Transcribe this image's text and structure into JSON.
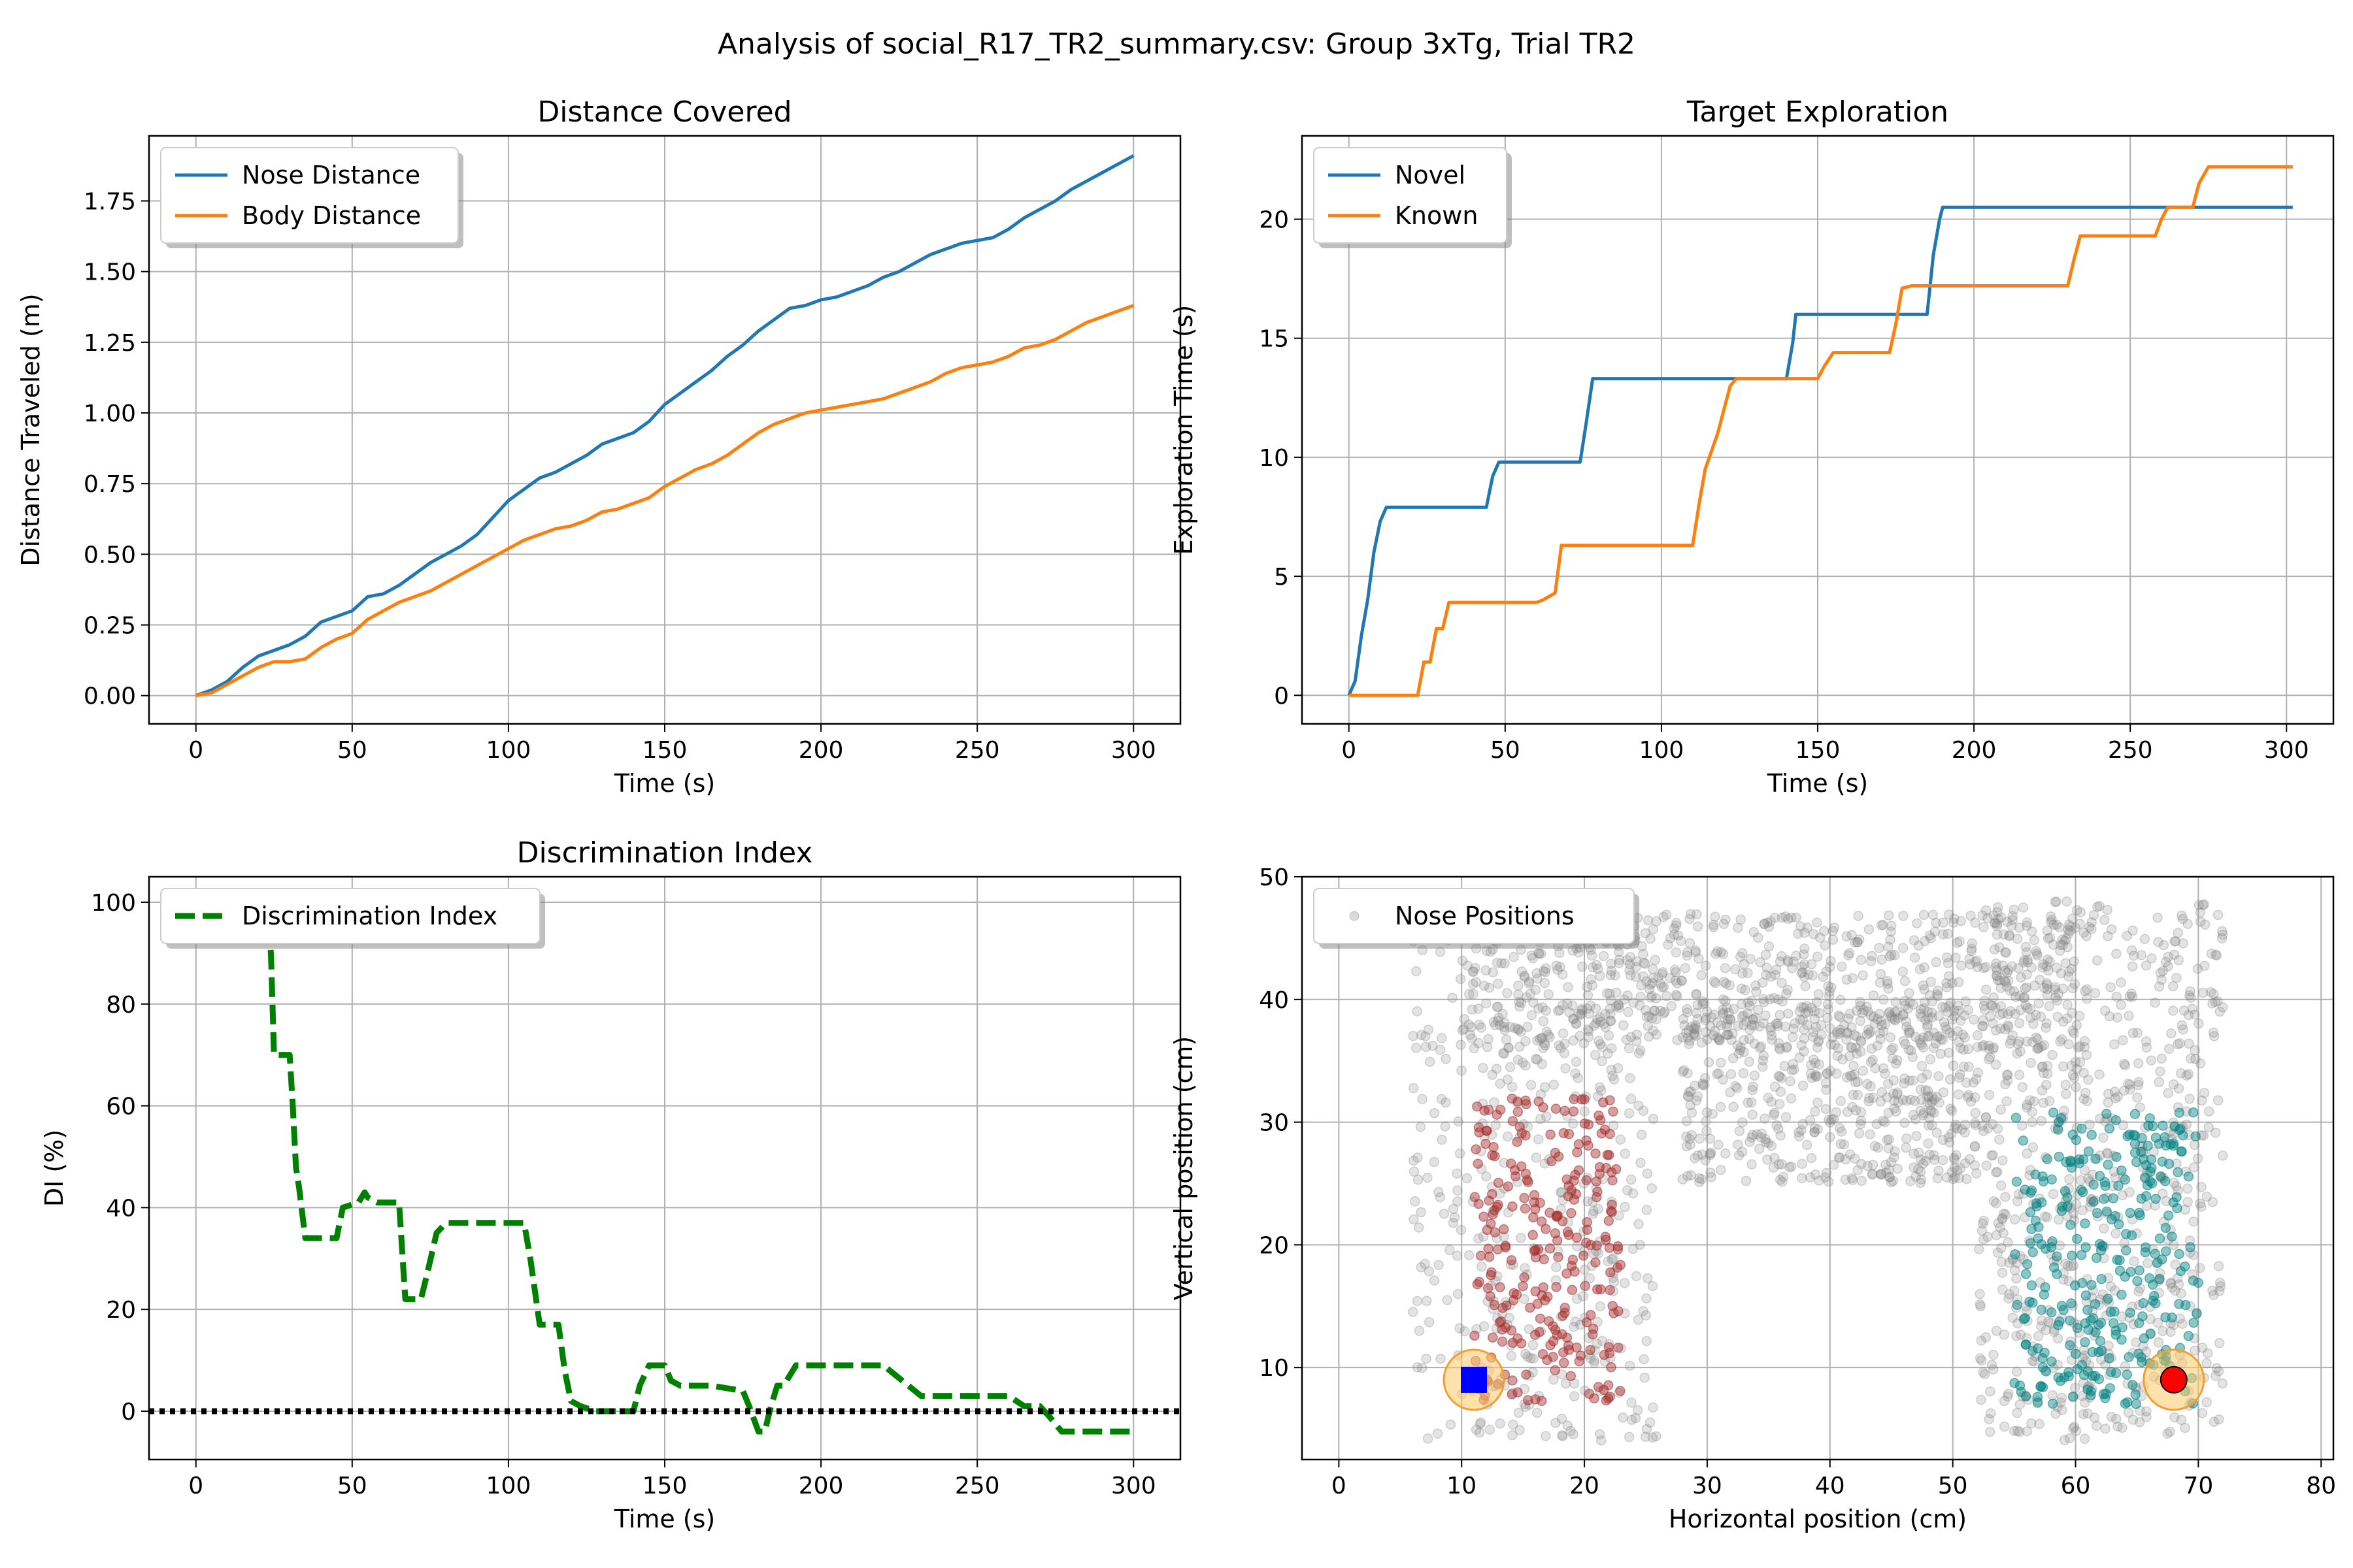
{
  "figure": {
    "suptitle": "Analysis of social_R17_TR2_summary.csv: Group 3xTg, Trial TR2"
  },
  "chart_data": [
    {
      "id": "distance",
      "type": "line",
      "title": "Distance Covered",
      "xlabel": "Time (s)",
      "ylabel": "Distance Traveled (m)",
      "xlim": [
        -15,
        315
      ],
      "ylim": [
        -0.1,
        1.98
      ],
      "xticks": [
        0,
        50,
        100,
        150,
        200,
        250,
        300
      ],
      "yticks": [
        0.0,
        0.25,
        0.5,
        0.75,
        1.0,
        1.25,
        1.5,
        1.75
      ],
      "ytick_labels": [
        "0.00",
        "0.25",
        "0.50",
        "0.75",
        "1.00",
        "1.25",
        "1.50",
        "1.75"
      ],
      "grid": true,
      "legend": "upper left",
      "series": [
        {
          "name": "Nose Distance",
          "color": "#1f77b4",
          "style": "solid",
          "x": [
            0,
            5,
            10,
            15,
            20,
            25,
            30,
            35,
            40,
            45,
            50,
            55,
            60,
            65,
            70,
            75,
            80,
            85,
            90,
            95,
            100,
            105,
            110,
            115,
            120,
            125,
            130,
            135,
            140,
            145,
            150,
            155,
            160,
            165,
            170,
            175,
            180,
            185,
            190,
            195,
            200,
            205,
            210,
            215,
            220,
            225,
            230,
            235,
            240,
            245,
            250,
            255,
            260,
            265,
            270,
            275,
            280,
            285,
            290,
            295,
            300
          ],
          "y": [
            0.0,
            0.02,
            0.05,
            0.1,
            0.14,
            0.16,
            0.18,
            0.21,
            0.26,
            0.28,
            0.3,
            0.35,
            0.36,
            0.39,
            0.43,
            0.47,
            0.5,
            0.53,
            0.57,
            0.63,
            0.69,
            0.73,
            0.77,
            0.79,
            0.82,
            0.85,
            0.89,
            0.91,
            0.93,
            0.97,
            1.03,
            1.07,
            1.11,
            1.15,
            1.2,
            1.24,
            1.29,
            1.33,
            1.37,
            1.38,
            1.4,
            1.41,
            1.43,
            1.45,
            1.48,
            1.5,
            1.53,
            1.56,
            1.58,
            1.6,
            1.61,
            1.62,
            1.65,
            1.69,
            1.72,
            1.75,
            1.79,
            1.82,
            1.85,
            1.88,
            1.91
          ]
        },
        {
          "name": "Body Distance",
          "color": "#ff7f0e",
          "style": "solid",
          "x": [
            0,
            5,
            10,
            15,
            20,
            25,
            30,
            35,
            40,
            45,
            50,
            55,
            60,
            65,
            70,
            75,
            80,
            85,
            90,
            95,
            100,
            105,
            110,
            115,
            120,
            125,
            130,
            135,
            140,
            145,
            150,
            155,
            160,
            165,
            170,
            175,
            180,
            185,
            190,
            195,
            200,
            205,
            210,
            215,
            220,
            225,
            230,
            235,
            240,
            245,
            250,
            255,
            260,
            265,
            270,
            275,
            280,
            285,
            290,
            295,
            300
          ],
          "y": [
            0.0,
            0.01,
            0.04,
            0.07,
            0.1,
            0.12,
            0.12,
            0.13,
            0.17,
            0.2,
            0.22,
            0.27,
            0.3,
            0.33,
            0.35,
            0.37,
            0.4,
            0.43,
            0.46,
            0.49,
            0.52,
            0.55,
            0.57,
            0.59,
            0.6,
            0.62,
            0.65,
            0.66,
            0.68,
            0.7,
            0.74,
            0.77,
            0.8,
            0.82,
            0.85,
            0.89,
            0.93,
            0.96,
            0.98,
            1.0,
            1.01,
            1.02,
            1.03,
            1.04,
            1.05,
            1.07,
            1.09,
            1.11,
            1.14,
            1.16,
            1.17,
            1.18,
            1.2,
            1.23,
            1.24,
            1.26,
            1.29,
            1.32,
            1.34,
            1.36,
            1.38
          ]
        }
      ]
    },
    {
      "id": "exploration",
      "type": "line",
      "title": "Target Exploration",
      "xlabel": "Time (s)",
      "ylabel": "Exploration Time (s)",
      "xlim": [
        -15,
        315
      ],
      "ylim": [
        -1.2,
        23.5
      ],
      "xticks": [
        0,
        50,
        100,
        150,
        200,
        250,
        300
      ],
      "yticks": [
        0,
        5,
        10,
        15,
        20
      ],
      "ytick_labels": [
        "0",
        "5",
        "10",
        "15",
        "20"
      ],
      "grid": true,
      "legend": "upper left",
      "series": [
        {
          "name": "Novel",
          "color": "#1f77b4",
          "style": "solid",
          "x": [
            0,
            2,
            4,
            6,
            8,
            10,
            12,
            44,
            46,
            48,
            74,
            76,
            78,
            140,
            142,
            143,
            172,
            185,
            187,
            189,
            190,
            302
          ],
          "y": [
            0,
            0.6,
            2.5,
            4.0,
            6.0,
            7.3,
            7.9,
            7.9,
            9.2,
            9.8,
            9.8,
            11.5,
            13.3,
            13.3,
            14.8,
            16.0,
            16.0,
            16.0,
            18.5,
            20.0,
            20.5,
            20.5
          ]
        },
        {
          "name": "Known",
          "color": "#ff7f0e",
          "style": "solid",
          "x": [
            0,
            22,
            24,
            26,
            28,
            30,
            32,
            60,
            62,
            66,
            68,
            110,
            112,
            114,
            118,
            122,
            124,
            150,
            152,
            155,
            173,
            175,
            177,
            180,
            230,
            232,
            234,
            258,
            260,
            262,
            270,
            272,
            275,
            302
          ],
          "y": [
            0,
            0,
            1.4,
            1.4,
            2.8,
            2.8,
            3.9,
            3.9,
            4.0,
            4.3,
            6.3,
            6.3,
            8.0,
            9.5,
            11.0,
            13.0,
            13.3,
            13.3,
            13.8,
            14.4,
            14.4,
            15.6,
            17.1,
            17.2,
            17.2,
            18.3,
            19.3,
            19.3,
            20.0,
            20.5,
            20.5,
            21.5,
            22.2,
            22.2
          ]
        }
      ]
    },
    {
      "id": "di",
      "type": "line",
      "title": "Discrimination Index",
      "xlabel": "Time (s)",
      "ylabel": "DI (%)",
      "xlim": [
        -15,
        315
      ],
      "ylim": [
        -9.5,
        105
      ],
      "xticks": [
        0,
        50,
        100,
        150,
        200,
        250,
        300
      ],
      "yticks": [
        0,
        20,
        40,
        60,
        80,
        100
      ],
      "ytick_labels": [
        "0",
        "20",
        "40",
        "60",
        "80",
        "100"
      ],
      "grid": true,
      "legend": "upper left",
      "series": [
        {
          "name": "Discrimination Index",
          "color": "#008000",
          "style": "dashed",
          "x": [
            23,
            24,
            25,
            30,
            31,
            32,
            33,
            35,
            38,
            42,
            45,
            47,
            52,
            54,
            55,
            58,
            65,
            67,
            70,
            72,
            74,
            77,
            80,
            90,
            105,
            107,
            110,
            113,
            116,
            118,
            120,
            123,
            128,
            140,
            142,
            145,
            150,
            152,
            155,
            165,
            175,
            177,
            180,
            182,
            184,
            186,
            188,
            192,
            200,
            220,
            232,
            235,
            240,
            260,
            265,
            270,
            273,
            277,
            280,
            300
          ],
          "y": [
            96,
            90,
            70,
            70,
            60,
            48,
            44,
            34,
            34,
            34,
            34,
            40,
            41,
            43,
            42,
            41,
            41,
            22,
            22,
            22,
            27,
            35,
            37,
            37,
            37,
            30,
            17,
            17,
            17,
            8,
            2,
            1,
            0,
            0,
            5,
            9,
            9,
            6,
            5,
            5,
            4,
            1,
            -4,
            -4,
            1,
            5,
            5,
            9,
            9,
            9,
            3,
            3,
            3,
            3,
            1,
            1,
            -1,
            -4,
            -4,
            -4
          ]
        },
        {
          "name": "",
          "color": "#000000",
          "style": "dotted",
          "x": [
            -15,
            315
          ],
          "y": [
            0,
            0
          ]
        }
      ]
    },
    {
      "id": "positions",
      "type": "scatter",
      "xlabel": "Horizontal position (cm)",
      "ylabel": "Vertical position (cm)",
      "xlim": [
        -3,
        81
      ],
      "ylim": [
        2.5,
        50
      ],
      "xticks": [
        0,
        10,
        20,
        30,
        40,
        50,
        60,
        70,
        80
      ],
      "yticks": [
        10,
        20,
        30,
        40,
        50
      ],
      "ytick_labels": [
        "10",
        "20",
        "30",
        "40",
        "50"
      ],
      "grid": true,
      "legend": "upper left",
      "series": [
        {
          "name": "Nose Positions",
          "color": "#808080",
          "regions": [
            {
              "xr": [
                6,
                26
              ],
              "yr": [
                4,
                47
              ],
              "n": 420
            },
            {
              "xr": [
                10,
                60
              ],
              "yr": [
                36,
                47
              ],
              "n": 700
            },
            {
              "xr": [
                28,
                52
              ],
              "yr": [
                25,
                40
              ],
              "n": 520
            },
            {
              "xr": [
                52,
                72
              ],
              "yr": [
                4,
                48
              ],
              "n": 700
            }
          ]
        },
        {
          "name": "",
          "color": "#a52a2a",
          "regions": [
            {
              "xr": [
                11,
                23
              ],
              "yr": [
                7,
                32
              ],
              "n": 260
            }
          ]
        },
        {
          "name": "",
          "color": "#008080",
          "regions": [
            {
              "xr": [
                55,
                70
              ],
              "yr": [
                7,
                31
              ],
              "n": 300
            }
          ]
        }
      ],
      "targets": [
        {
          "label": "",
          "x": 11,
          "y": 9,
          "marker": "square",
          "color": "#0000ff",
          "halo": "#ffc966"
        },
        {
          "label": "",
          "x": 68,
          "y": 9,
          "marker": "circle",
          "color": "#ff0000",
          "halo": "#ffc966"
        }
      ]
    }
  ]
}
